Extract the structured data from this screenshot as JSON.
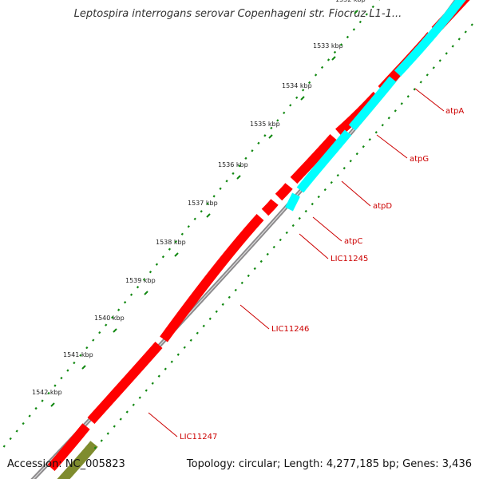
{
  "header": {
    "title": "Leptospira interrogans serovar Copenhageni str. Fiocruz L1-1..."
  },
  "footer": {
    "accession": "Accession: NC_005823",
    "summary": "Topology: circular; Length: 4,277,185 bp; Genes: 3,436"
  },
  "colors": {
    "backbone": "#8c8a8c",
    "gene_forward": "#ff0000",
    "gene_reverse": "#00ffff",
    "gene_other": "#7f8c2e",
    "tick": "#118811",
    "label": "#cc0000"
  },
  "scale_ticks": [
    {
      "label": "1532 kbp",
      "value": 1532
    },
    {
      "label": "1533 kbp",
      "value": 1533
    },
    {
      "label": "1534 kbp",
      "value": 1534
    },
    {
      "label": "1535 kbp",
      "value": 1535
    },
    {
      "label": "1536 kbp",
      "value": 1536
    },
    {
      "label": "1537 kbp",
      "value": 1537
    },
    {
      "label": "1538 kbp",
      "value": 1538
    },
    {
      "label": "1539 kbp",
      "value": 1539
    },
    {
      "label": "1540 kbp",
      "value": 1540
    },
    {
      "label": "1541 kbp",
      "value": 1541
    },
    {
      "label": "1542 kbp",
      "value": 1542
    }
  ],
  "gene_labels": [
    {
      "name": "atpA"
    },
    {
      "name": "atpG"
    },
    {
      "name": "atpD"
    },
    {
      "name": "atpC"
    },
    {
      "name": "LIC11245"
    },
    {
      "name": "LIC11246"
    },
    {
      "name": "LIC11247"
    }
  ]
}
